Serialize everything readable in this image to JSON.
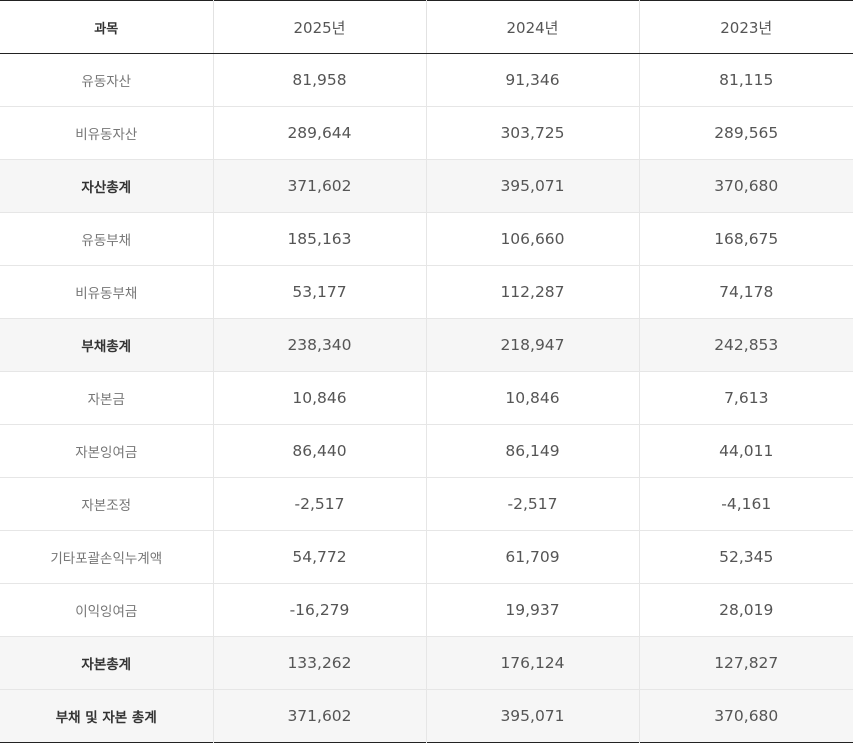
{
  "header": {
    "subject": "과목",
    "years": [
      "2025년",
      "2024년",
      "2023년"
    ]
  },
  "rows": [
    {
      "label": "유동자산",
      "total": false,
      "values": [
        "81,958",
        "91,346",
        "81,115"
      ]
    },
    {
      "label": "비유동자산",
      "total": false,
      "values": [
        "289,644",
        "303,725",
        "289,565"
      ]
    },
    {
      "label": "자산총계",
      "total": true,
      "values": [
        "371,602",
        "395,071",
        "370,680"
      ]
    },
    {
      "label": "유동부채",
      "total": false,
      "values": [
        "185,163",
        "106,660",
        "168,675"
      ]
    },
    {
      "label": "비유동부채",
      "total": false,
      "values": [
        "53,177",
        "112,287",
        "74,178"
      ]
    },
    {
      "label": "부채총계",
      "total": true,
      "values": [
        "238,340",
        "218,947",
        "242,853"
      ]
    },
    {
      "label": "자본금",
      "total": false,
      "values": [
        "10,846",
        "10,846",
        "7,613"
      ]
    },
    {
      "label": "자본잉여금",
      "total": false,
      "values": [
        "86,440",
        "86,149",
        "44,011"
      ]
    },
    {
      "label": "자본조정",
      "total": false,
      "values": [
        "-2,517",
        "-2,517",
        "-4,161"
      ]
    },
    {
      "label": "기타포괄손익누계액",
      "total": false,
      "values": [
        "54,772",
        "61,709",
        "52,345"
      ]
    },
    {
      "label": "이익잉여금",
      "total": false,
      "values": [
        "-16,279",
        "19,937",
        "28,019"
      ]
    },
    {
      "label": "자본총계",
      "total": true,
      "values": [
        "133,262",
        "176,124",
        "127,827"
      ]
    },
    {
      "label": "부채 및 자본 총계",
      "total": true,
      "values": [
        "371,602",
        "395,071",
        "370,680"
      ]
    }
  ]
}
